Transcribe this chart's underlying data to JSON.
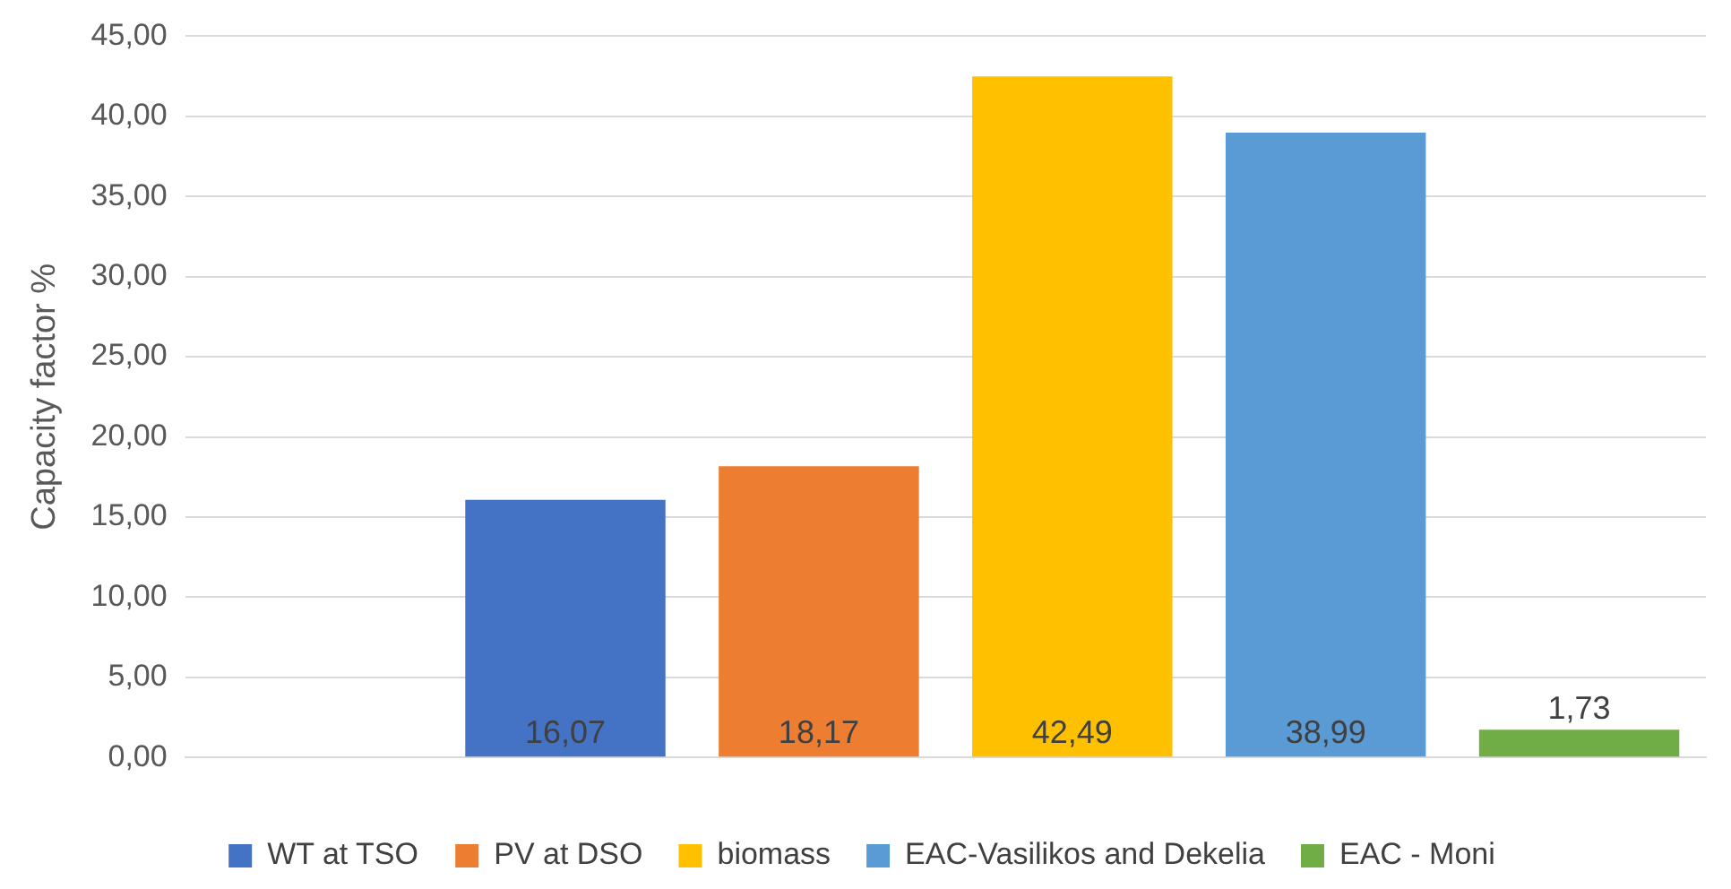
{
  "chart_data": {
    "type": "bar",
    "ylabel": "Capacity factor %",
    "categories": [
      null,
      null,
      null,
      null,
      null,
      null
    ],
    "series": [
      {
        "name": "WT at TSO",
        "color": "#4472c4",
        "values": [
          null,
          16.07,
          null,
          null,
          null,
          null
        ],
        "value_labels": [
          null,
          "16,07",
          null,
          null,
          null,
          null
        ]
      },
      {
        "name": "PV at DSO",
        "color": "#ed7d31",
        "values": [
          null,
          null,
          18.17,
          null,
          null,
          null
        ],
        "value_labels": [
          null,
          null,
          "18,17",
          null,
          null,
          null
        ]
      },
      {
        "name": "biomass",
        "color": "#ffc000",
        "values": [
          null,
          null,
          null,
          42.49,
          null,
          null
        ],
        "value_labels": [
          null,
          null,
          null,
          "42,49",
          null,
          null
        ]
      },
      {
        "name": "EAC-Vasilikos and Dekelia",
        "color": "#5b9bd5",
        "values": [
          null,
          null,
          null,
          null,
          38.99,
          null
        ],
        "value_labels": [
          null,
          null,
          null,
          null,
          "38,99",
          null
        ]
      },
      {
        "name": "EAC - Moni",
        "color": "#70ad47",
        "values": [
          null,
          null,
          null,
          null,
          null,
          1.73
        ],
        "value_labels": [
          null,
          null,
          null,
          null,
          null,
          "1,73"
        ]
      }
    ],
    "ylim": [
      0,
      45
    ],
    "yticks": [
      {
        "value": 0,
        "label": "0,00"
      },
      {
        "value": 5,
        "label": "5,00"
      },
      {
        "value": 10,
        "label": "10,00"
      },
      {
        "value": 15,
        "label": "15,00"
      },
      {
        "value": 20,
        "label": "20,00"
      },
      {
        "value": 25,
        "label": "25,00"
      },
      {
        "value": 30,
        "label": "30,00"
      },
      {
        "value": 35,
        "label": "35,00"
      },
      {
        "value": 40,
        "label": "40,00"
      },
      {
        "value": 45,
        "label": "45,00"
      }
    ],
    "grid": "y",
    "legend": "bottom"
  }
}
